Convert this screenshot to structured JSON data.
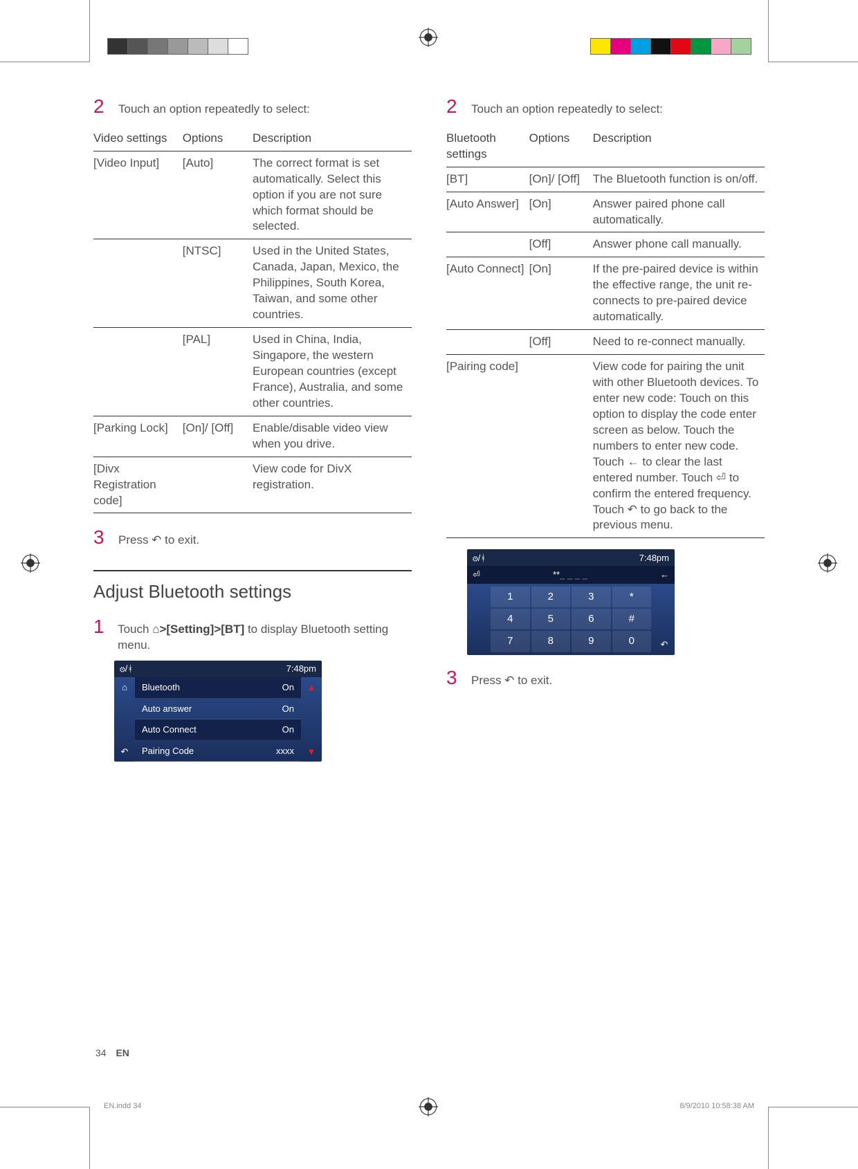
{
  "crop_colors_left": [
    "#333333",
    "#555555",
    "#777777",
    "#999999",
    "#bbbbbb",
    "#dddddd",
    "#ffffff"
  ],
  "crop_colors_right": [
    "#ffe600",
    "#e6007e",
    "#009fe3",
    "#111111",
    "#e30613",
    "#009640",
    "#f7a8c4",
    "#a3d39c"
  ],
  "left_col": {
    "step2": "Touch an option repeatedly to select:",
    "table_headers": [
      "Video settings",
      "Options",
      "Description"
    ],
    "rows": [
      {
        "setting": "[Video Input]",
        "option": "[Auto]",
        "desc": "The correct format is set automatically. Select this option if you are not sure which format should be selected."
      },
      {
        "setting": "",
        "option": "[NTSC]",
        "desc": "Used in the United States, Canada, Japan, Mexico, the Philippines, South Korea, Taiwan, and some other countries."
      },
      {
        "setting": "",
        "option": "[PAL]",
        "desc": "Used in China, India, Singapore, the western European countries (except France), Australia, and some other countries."
      },
      {
        "setting": "[Parking Lock]",
        "option": "[On]/ [Off]",
        "desc": "Enable/disable video view when you drive."
      },
      {
        "setting": "[Divx Registration code]",
        "option": "",
        "desc": "View code for DivX registration."
      }
    ],
    "step3": "Press ↶ to exit.",
    "section_title": "Adjust Bluetooth settings",
    "step1_bt_prefix": "Touch ",
    "step1_bt_path": "⌂>[Setting]>[BT]",
    "step1_bt_suffix": " to display Bluetooth setting menu.",
    "screenshot1": {
      "time": "7:48pm",
      "rows": [
        {
          "label": "Bluetooth",
          "val": "On",
          "sel": true
        },
        {
          "label": "Auto answer",
          "val": "On"
        },
        {
          "label": "Auto Connect",
          "val": "On",
          "sel": true
        },
        {
          "label": "Pairing Code",
          "val": "xxxx"
        }
      ]
    }
  },
  "right_col": {
    "step2": "Touch an option repeatedly to select:",
    "table_headers": [
      "Bluetooth settings",
      "Options",
      "Description"
    ],
    "rows": [
      {
        "setting": "[BT]",
        "option": "[On]/ [Off]",
        "desc": "The Bluetooth function is on/off."
      },
      {
        "setting": "[Auto Answer]",
        "option": "[On]",
        "desc": "Answer paired phone call automatically."
      },
      {
        "setting": "",
        "option": "[Off]",
        "desc": "Answer phone call manually."
      },
      {
        "setting": "[Auto Connect]",
        "option": "[On]",
        "desc": "If the pre-paired device is within the effective range, the unit re-connects to pre-paired device automatically."
      },
      {
        "setting": "",
        "option": "[Off]",
        "desc": "Need to re-connect manually."
      },
      {
        "setting": "[Pairing code]",
        "option": "",
        "desc": "View code for pairing the unit with other Bluetooth devices. To enter new code: Touch on this option to display the code enter screen as below. Touch the numbers to enter new code. Touch ← to clear the last entered number. Touch ⏎ to confirm the entered frequency. Touch ↶ to go back to the previous menu."
      }
    ],
    "screenshot2": {
      "time": "7:48pm",
      "entry": "**",
      "keys": [
        "1",
        "2",
        "3",
        "*",
        "4",
        "5",
        "6",
        "#",
        "7",
        "8",
        "9",
        "0"
      ]
    },
    "step3": "Press ↶ to exit."
  },
  "page_num": "34",
  "lang": "EN",
  "print_left": "EN.indd   34",
  "print_right": "8/9/2010   10:58:38 AM"
}
